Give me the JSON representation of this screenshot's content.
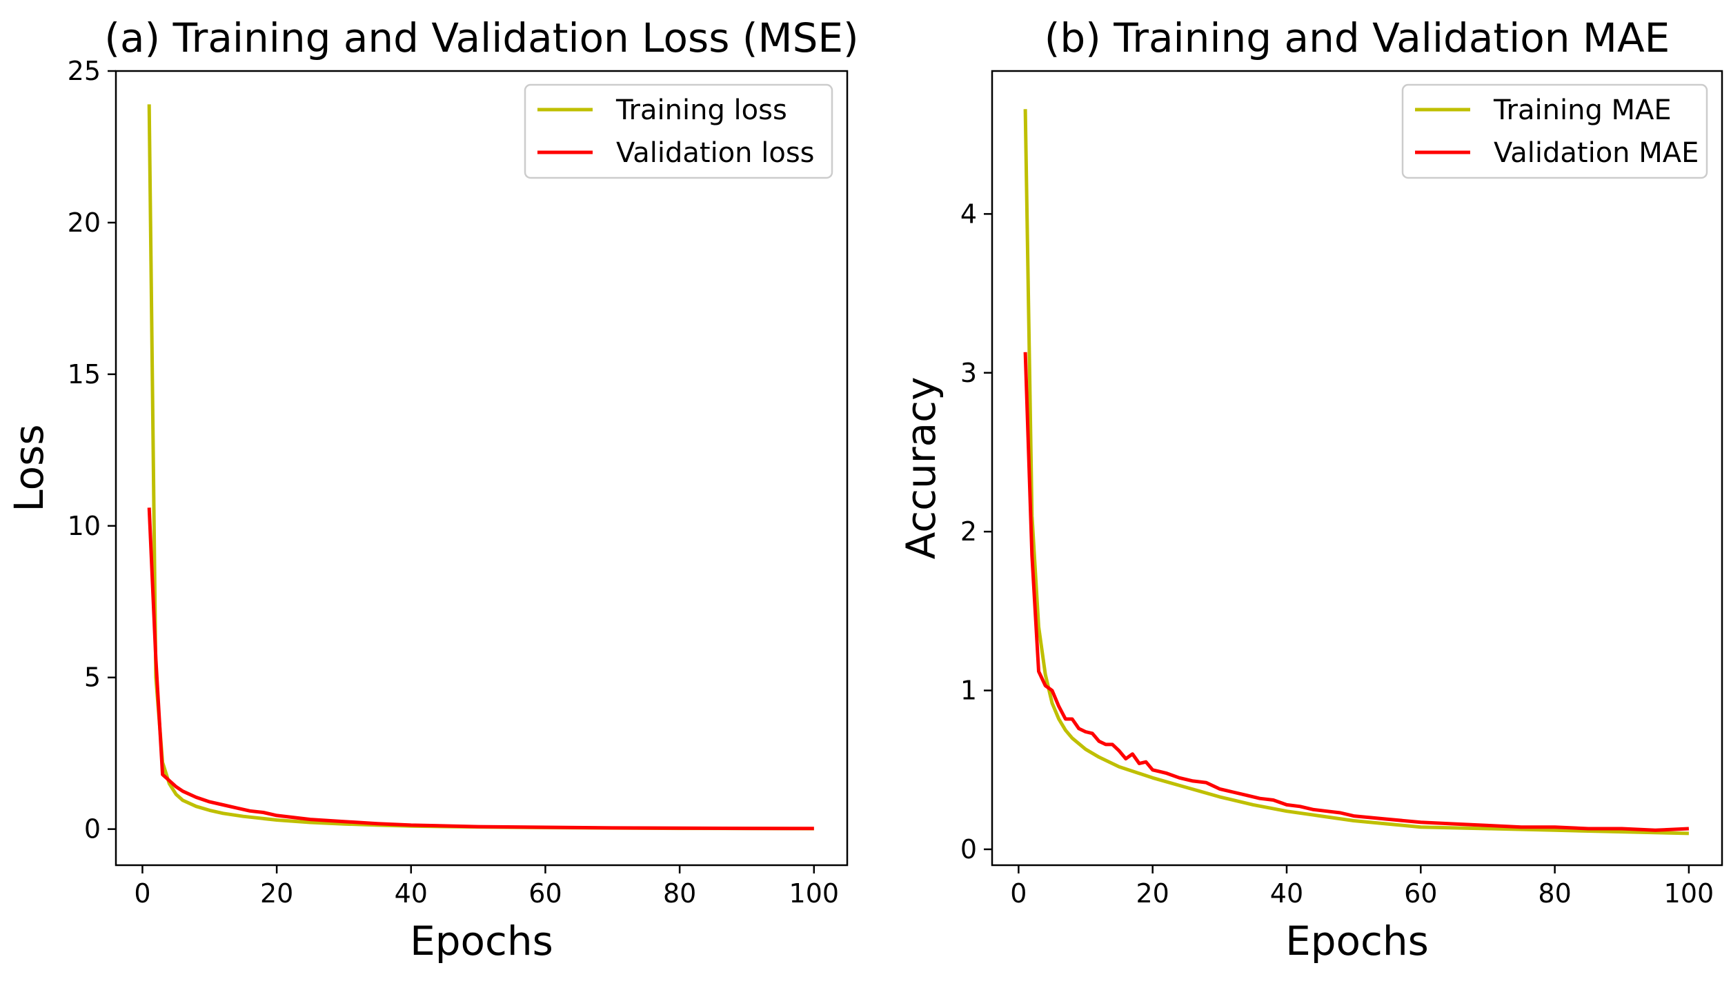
{
  "chart_data": [
    {
      "type": "line",
      "title": "(a) Training and Validation Loss (MSE)",
      "xlabel": "Epochs",
      "ylabel": "Loss",
      "xlim": [
        -3.95,
        104.95
      ],
      "ylim": [
        -1.19,
        25.0
      ],
      "xticks": [
        0,
        20,
        40,
        60,
        80,
        100
      ],
      "yticks": [
        0,
        5,
        10,
        15,
        20,
        25
      ],
      "legend_position": "top-right",
      "series": [
        {
          "name": "Training loss",
          "color": "#bfbf00",
          "x": [
            1,
            2,
            3,
            4,
            5,
            6,
            8,
            10,
            12,
            15,
            20,
            25,
            30,
            35,
            40,
            50,
            60,
            70,
            80,
            90,
            100
          ],
          "y": [
            23.9,
            5.0,
            2.2,
            1.5,
            1.15,
            0.95,
            0.75,
            0.62,
            0.52,
            0.42,
            0.3,
            0.22,
            0.17,
            0.13,
            0.1,
            0.07,
            0.05,
            0.035,
            0.025,
            0.02,
            0.015
          ]
        },
        {
          "name": "Validation loss",
          "color": "#ff0000",
          "x": [
            1,
            2,
            3,
            4,
            5,
            6,
            8,
            10,
            12,
            14,
            16,
            18,
            20,
            25,
            30,
            35,
            40,
            50,
            60,
            70,
            80,
            90,
            100
          ],
          "y": [
            10.6,
            5.6,
            1.8,
            1.6,
            1.4,
            1.25,
            1.05,
            0.9,
            0.8,
            0.7,
            0.6,
            0.55,
            0.45,
            0.32,
            0.25,
            0.18,
            0.13,
            0.08,
            0.06,
            0.04,
            0.03,
            0.025,
            0.02
          ]
        }
      ]
    },
    {
      "type": "line",
      "title": "(b) Training and Validation MAE",
      "xlabel": "Epochs",
      "ylabel": "Accuracy",
      "xlim": [
        -3.95,
        104.95
      ],
      "ylim": [
        -0.1,
        4.9
      ],
      "xticks": [
        0,
        20,
        40,
        60,
        80,
        100
      ],
      "yticks": [
        0,
        1,
        2,
        3,
        4
      ],
      "legend_position": "top-right",
      "series": [
        {
          "name": "Training MAE",
          "color": "#bfbf00",
          "x": [
            1,
            2,
            3,
            4,
            5,
            6,
            7,
            8,
            10,
            12,
            15,
            20,
            25,
            30,
            35,
            40,
            45,
            50,
            55,
            60,
            70,
            80,
            90,
            100
          ],
          "y": [
            4.66,
            2.1,
            1.4,
            1.1,
            0.92,
            0.82,
            0.75,
            0.7,
            0.63,
            0.58,
            0.52,
            0.45,
            0.39,
            0.33,
            0.28,
            0.24,
            0.21,
            0.18,
            0.16,
            0.14,
            0.13,
            0.12,
            0.11,
            0.1
          ]
        },
        {
          "name": "Validation MAE",
          "color": "#ff0000",
          "x": [
            1,
            2,
            3,
            4,
            5,
            6,
            7,
            8,
            9,
            10,
            11,
            12,
            13,
            14,
            15,
            16,
            17,
            18,
            19,
            20,
            21,
            22,
            24,
            26,
            28,
            30,
            32,
            34,
            36,
            38,
            40,
            42,
            44,
            46,
            48,
            50,
            55,
            60,
            65,
            70,
            75,
            80,
            85,
            90,
            95,
            100
          ],
          "y": [
            3.13,
            1.85,
            1.12,
            1.03,
            1.0,
            0.9,
            0.82,
            0.82,
            0.76,
            0.74,
            0.73,
            0.68,
            0.66,
            0.66,
            0.62,
            0.57,
            0.6,
            0.54,
            0.55,
            0.5,
            0.49,
            0.48,
            0.45,
            0.43,
            0.42,
            0.38,
            0.36,
            0.34,
            0.32,
            0.31,
            0.28,
            0.27,
            0.25,
            0.24,
            0.23,
            0.21,
            0.19,
            0.17,
            0.16,
            0.15,
            0.14,
            0.14,
            0.13,
            0.13,
            0.12,
            0.13
          ]
        }
      ]
    }
  ]
}
